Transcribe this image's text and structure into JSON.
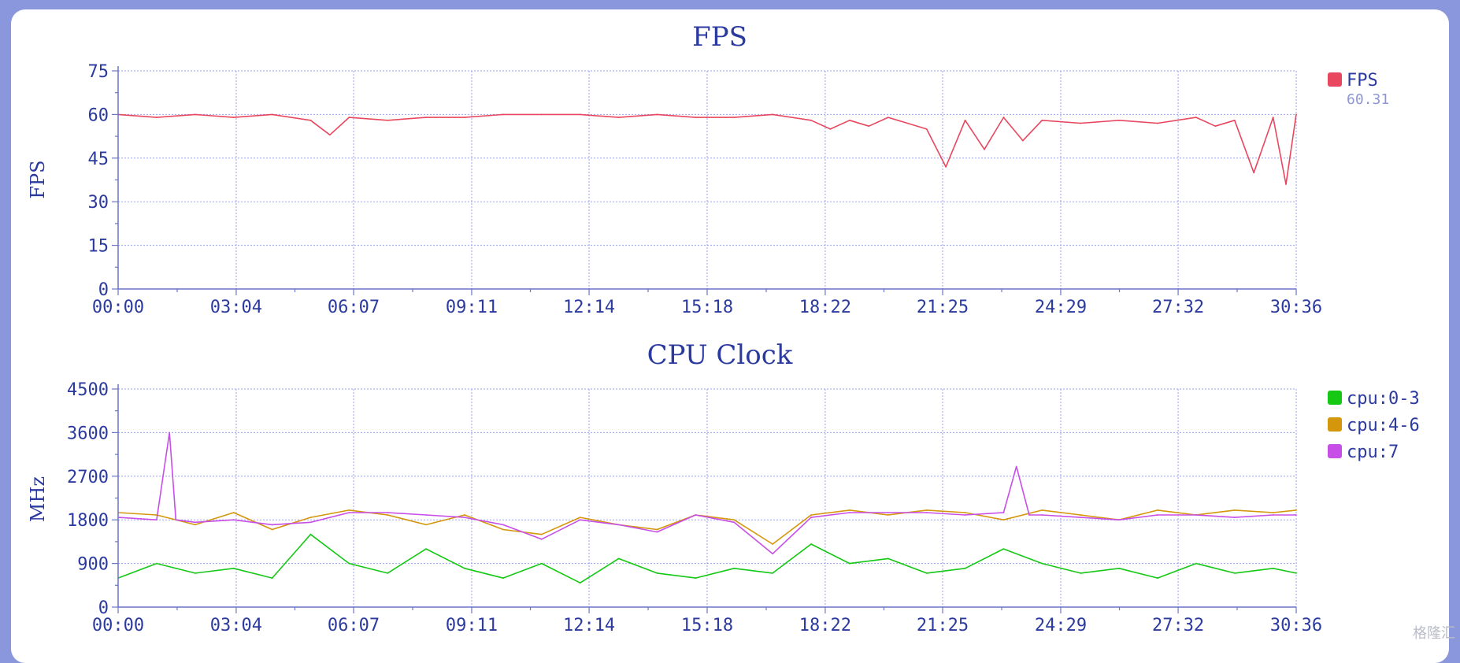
{
  "chart_data": [
    {
      "type": "line",
      "title": "FPS",
      "ylabel": "FPS",
      "xlabel": "",
      "ylim": [
        0,
        75
      ],
      "yticks": [
        "0",
        "15",
        "30",
        "45",
        "60",
        "75"
      ],
      "xticks": [
        "00:00",
        "03:04",
        "06:07",
        "09:11",
        "12:14",
        "15:18",
        "18:22",
        "21:25",
        "24:29",
        "27:32",
        "30:36"
      ],
      "legend_position": "right",
      "grid": true,
      "series": [
        {
          "name": "FPS",
          "legend_value": "60.31",
          "color": "#e8475f",
          "x": [
            "00:00",
            "01:00",
            "02:00",
            "03:00",
            "04:00",
            "05:00",
            "05:30",
            "06:00",
            "07:00",
            "08:00",
            "09:00",
            "10:00",
            "11:00",
            "12:00",
            "13:00",
            "14:00",
            "15:00",
            "16:00",
            "17:00",
            "18:00",
            "18:30",
            "19:00",
            "19:30",
            "20:00",
            "21:00",
            "21:30",
            "22:00",
            "22:30",
            "23:00",
            "23:30",
            "24:00",
            "25:00",
            "26:00",
            "27:00",
            "28:00",
            "28:30",
            "29:00",
            "29:30",
            "30:00",
            "30:20",
            "30:36"
          ],
          "y": [
            60,
            59,
            60,
            59,
            60,
            58,
            53,
            59,
            58,
            59,
            59,
            60,
            60,
            60,
            59,
            60,
            59,
            59,
            60,
            58,
            55,
            58,
            56,
            59,
            55,
            42,
            58,
            48,
            59,
            51,
            58,
            57,
            58,
            57,
            59,
            56,
            58,
            40,
            59,
            36,
            60
          ]
        }
      ]
    },
    {
      "type": "line",
      "title": "CPU Clock",
      "ylabel": "MHz",
      "xlabel": "",
      "ylim": [
        0,
        4500
      ],
      "yticks": [
        "0",
        "900",
        "1800",
        "2700",
        "3600",
        "4500"
      ],
      "xticks": [
        "00:00",
        "03:04",
        "06:07",
        "09:11",
        "12:14",
        "15:18",
        "18:22",
        "21:25",
        "24:29",
        "27:32",
        "30:36"
      ],
      "legend_position": "right",
      "grid": true,
      "series": [
        {
          "name": "cpu:0-3",
          "color": "#14c814",
          "x": [
            "00:00",
            "01:00",
            "02:00",
            "03:00",
            "04:00",
            "05:00",
            "06:00",
            "07:00",
            "08:00",
            "09:00",
            "10:00",
            "11:00",
            "12:00",
            "13:00",
            "14:00",
            "15:00",
            "16:00",
            "17:00",
            "18:00",
            "19:00",
            "20:00",
            "21:00",
            "22:00",
            "23:00",
            "24:00",
            "25:00",
            "26:00",
            "27:00",
            "28:00",
            "29:00",
            "30:00",
            "30:36"
          ],
          "y": [
            600,
            900,
            700,
            800,
            600,
            1500,
            900,
            700,
            1200,
            800,
            600,
            900,
            500,
            1000,
            700,
            600,
            800,
            700,
            1300,
            900,
            1000,
            700,
            800,
            1200,
            900,
            700,
            800,
            600,
            900,
            700,
            800,
            700
          ]
        },
        {
          "name": "cpu:4-6",
          "color": "#d4960a",
          "x": [
            "00:00",
            "01:00",
            "02:00",
            "03:00",
            "04:00",
            "05:00",
            "06:00",
            "07:00",
            "08:00",
            "09:00",
            "10:00",
            "11:00",
            "12:00",
            "13:00",
            "14:00",
            "15:00",
            "16:00",
            "17:00",
            "18:00",
            "19:00",
            "20:00",
            "21:00",
            "22:00",
            "23:00",
            "24:00",
            "25:00",
            "26:00",
            "27:00",
            "28:00",
            "29:00",
            "30:00",
            "30:36"
          ],
          "y": [
            1950,
            1900,
            1700,
            1950,
            1600,
            1850,
            2000,
            1900,
            1700,
            1900,
            1600,
            1500,
            1850,
            1700,
            1600,
            1900,
            1800,
            1300,
            1900,
            2000,
            1900,
            2000,
            1950,
            1800,
            2000,
            1900,
            1800,
            2000,
            1900,
            2000,
            1950,
            2000
          ]
        },
        {
          "name": "cpu:7",
          "color": "#c84ee8",
          "x": [
            "00:00",
            "01:00",
            "01:20",
            "01:30",
            "02:00",
            "03:00",
            "04:00",
            "05:00",
            "06:00",
            "07:00",
            "08:00",
            "09:00",
            "10:00",
            "11:00",
            "12:00",
            "13:00",
            "14:00",
            "15:00",
            "16:00",
            "17:00",
            "18:00",
            "19:00",
            "20:00",
            "21:00",
            "22:00",
            "23:00",
            "23:20",
            "23:40",
            "24:00",
            "25:00",
            "26:00",
            "27:00",
            "28:00",
            "29:00",
            "30:00",
            "30:36"
          ],
          "y": [
            1850,
            1800,
            3600,
            1800,
            1750,
            1800,
            1700,
            1750,
            1950,
            1950,
            1900,
            1850,
            1700,
            1400,
            1800,
            1700,
            1550,
            1900,
            1750,
            1100,
            1850,
            1950,
            1950,
            1950,
            1900,
            1950,
            2900,
            1900,
            1900,
            1850,
            1800,
            1900,
            1900,
            1850,
            1900,
            1900
          ]
        }
      ]
    }
  ],
  "watermark": "格隆汇"
}
